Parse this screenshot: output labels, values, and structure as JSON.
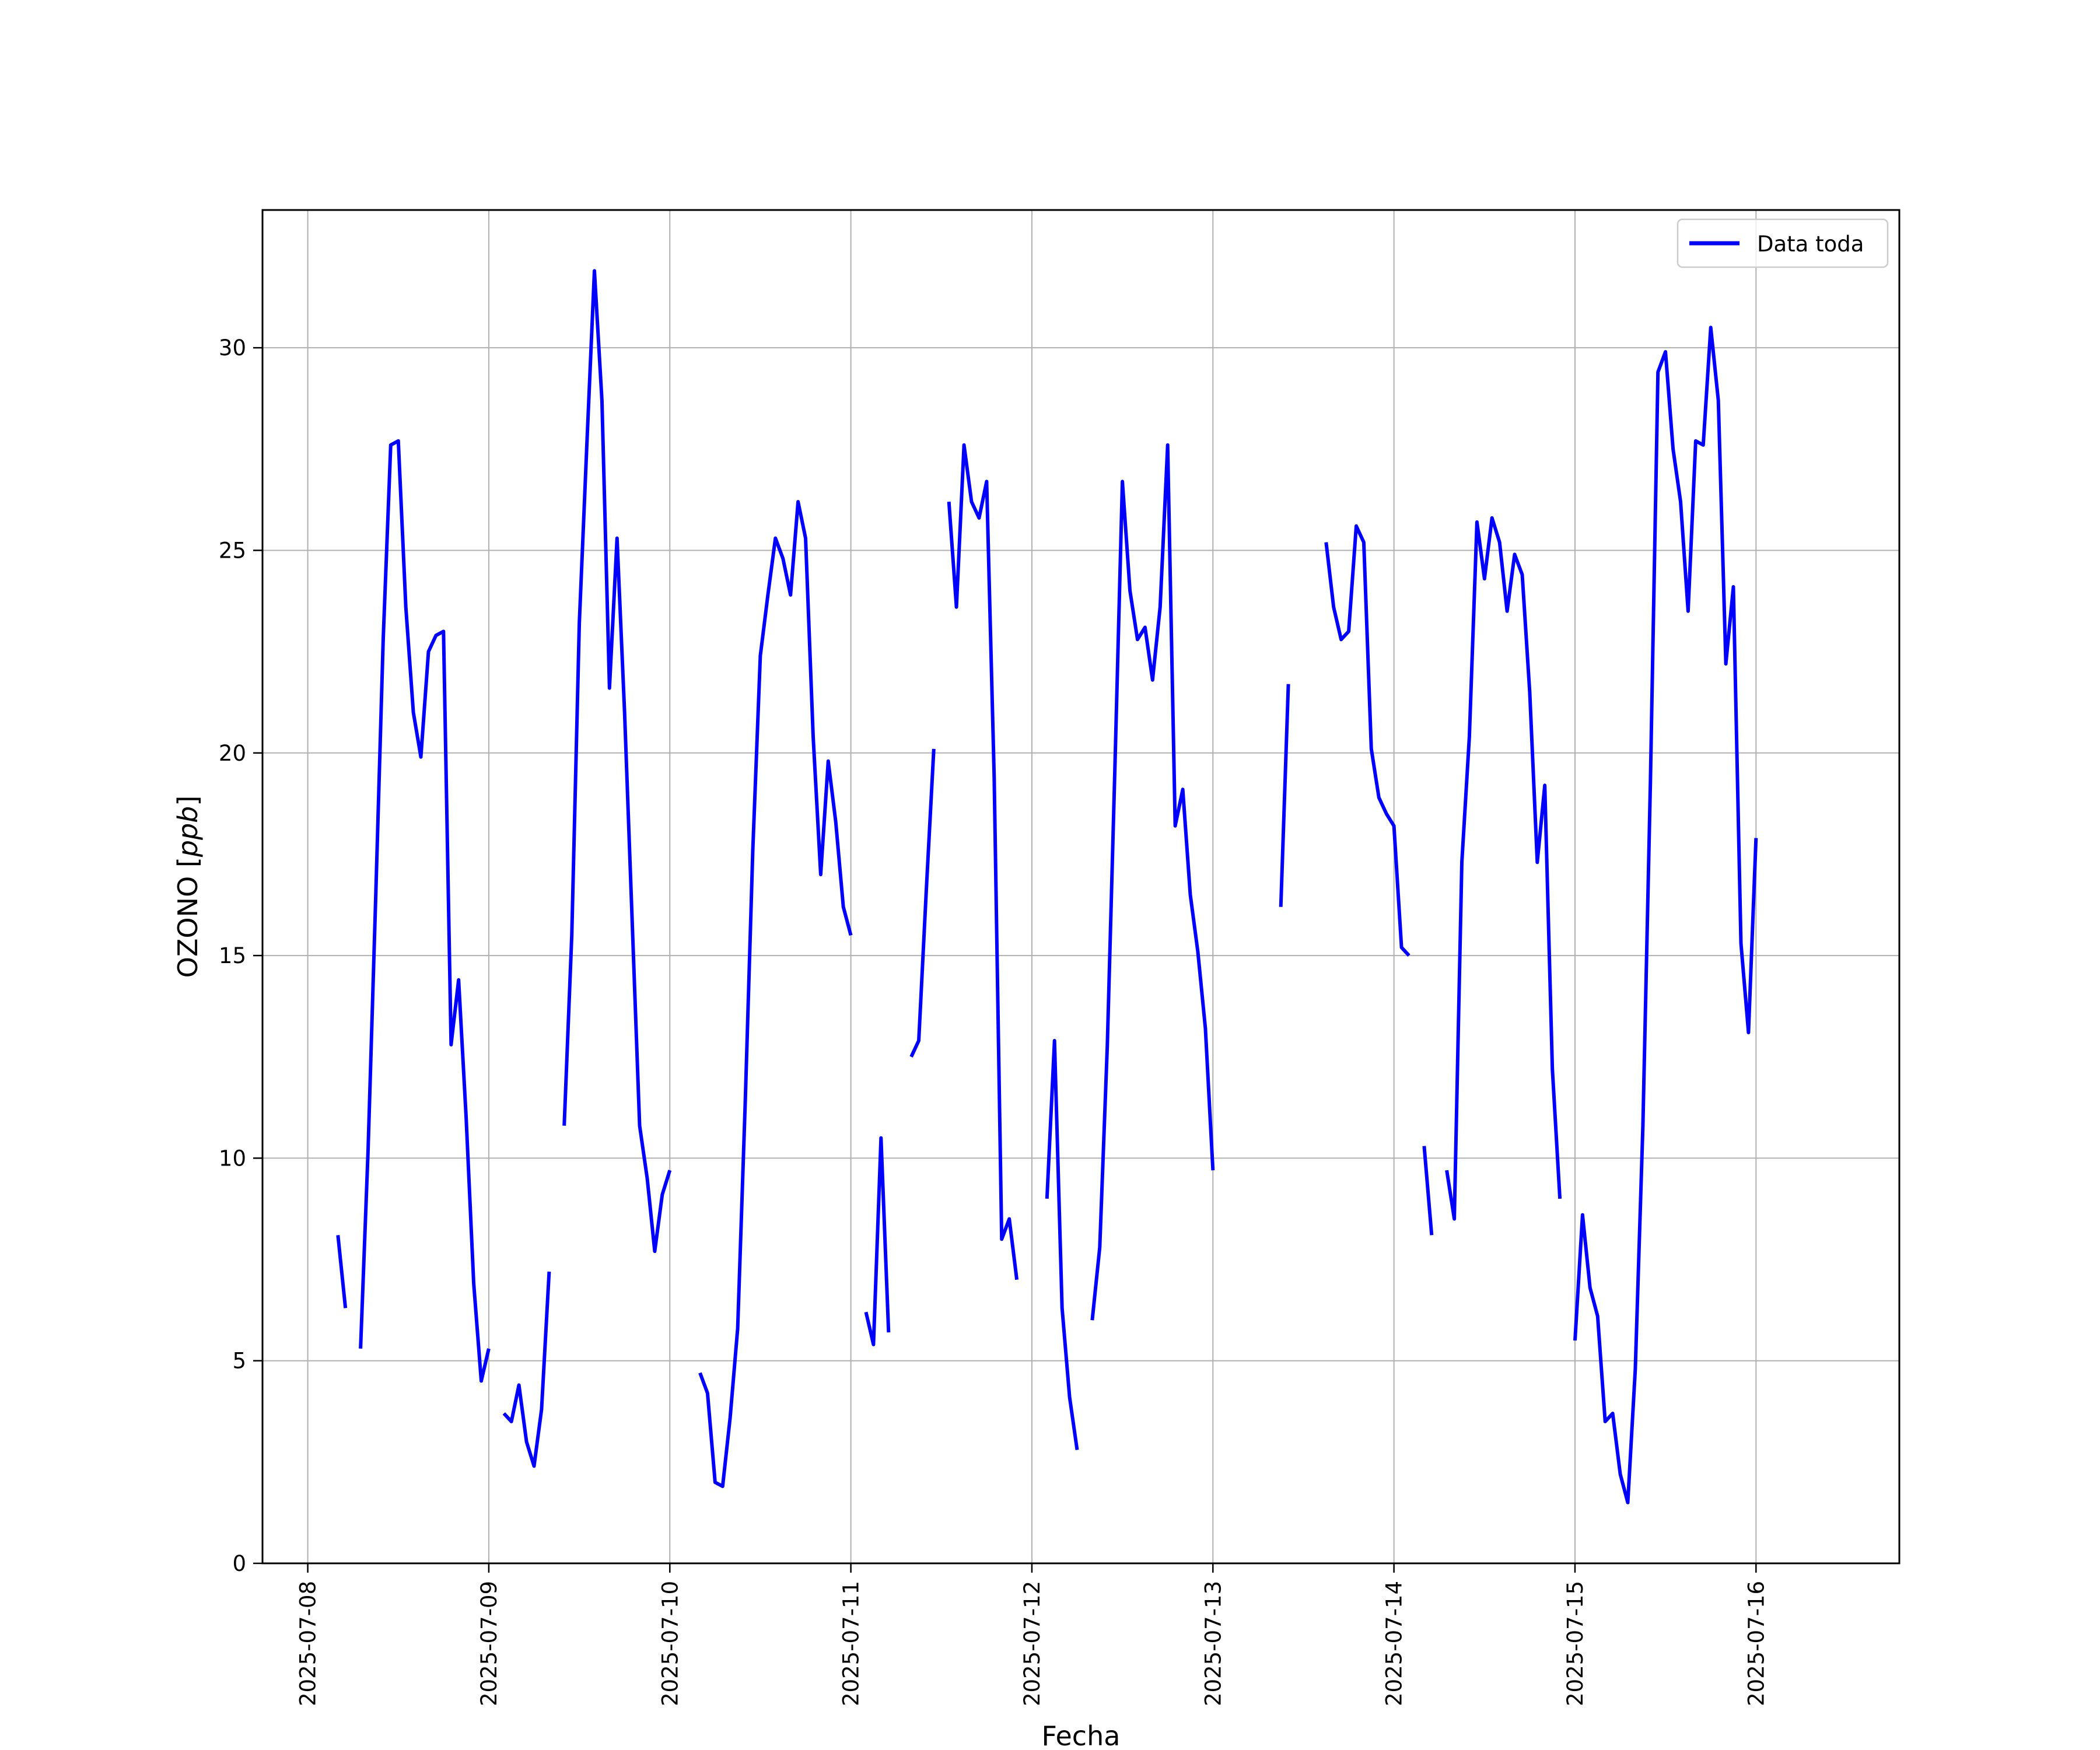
{
  "chart_data": {
    "type": "line",
    "xlabel": "Fecha",
    "ylabel": "OZONO [ppb]",
    "ylabel_italic_part": "ppb",
    "ylim": [
      0,
      33.4
    ],
    "xlim": [
      "2025-07-07 18:00",
      "2025-07-16 19:00"
    ],
    "x_ticks": [
      "2025-07-08",
      "2025-07-09",
      "2025-07-10",
      "2025-07-11",
      "2025-07-12",
      "2025-07-13",
      "2025-07-14",
      "2025-07-15",
      "2025-07-16"
    ],
    "y_ticks": [
      0,
      5,
      10,
      15,
      20,
      25,
      30
    ],
    "grid": true,
    "legend_position": "top-right",
    "series": [
      {
        "name": "Data toda",
        "color": "#0000ff",
        "segments": [
          [
            [
              "2025-07-08 04:00",
              8.1
            ],
            [
              "2025-07-08 05:00",
              6.3
            ]
          ],
          [
            [
              "2025-07-08 07:00",
              5.3
            ],
            [
              "2025-07-08 08:00",
              10.2
            ],
            [
              "2025-07-08 09:00",
              16.4
            ],
            [
              "2025-07-08 10:00",
              22.8
            ],
            [
              "2025-07-08 11:00",
              27.6
            ],
            [
              "2025-07-08 12:00",
              27.7
            ],
            [
              "2025-07-08 13:00",
              23.6
            ],
            [
              "2025-07-08 14:00",
              21.0
            ],
            [
              "2025-07-08 15:00",
              19.9
            ],
            [
              "2025-07-08 16:00",
              22.5
            ],
            [
              "2025-07-08 17:00",
              22.9
            ],
            [
              "2025-07-08 18:00",
              23.0
            ],
            [
              "2025-07-08 19:00",
              12.8
            ],
            [
              "2025-07-08 20:00",
              14.4
            ],
            [
              "2025-07-08 21:00",
              11.0
            ],
            [
              "2025-07-08 22:00",
              6.9
            ],
            [
              "2025-07-08 23:00",
              4.5
            ],
            [
              "2025-07-09 00:00",
              5.3
            ]
          ],
          [
            [
              "2025-07-09 02:00",
              3.7
            ],
            [
              "2025-07-09 03:00",
              3.5
            ],
            [
              "2025-07-09 04:00",
              4.4
            ],
            [
              "2025-07-09 05:00",
              3.0
            ],
            [
              "2025-07-09 06:00",
              2.4
            ],
            [
              "2025-07-09 07:00",
              3.8
            ],
            [
              "2025-07-09 08:00",
              7.2
            ]
          ],
          [
            [
              "2025-07-09 10:00",
              10.8
            ],
            [
              "2025-07-09 11:00",
              15.5
            ],
            [
              "2025-07-09 12:00",
              23.2
            ],
            [
              "2025-07-09 13:00",
              27.6
            ],
            [
              "2025-07-09 14:00",
              31.9
            ],
            [
              "2025-07-09 15:00",
              28.7
            ],
            [
              "2025-07-09 16:00",
              21.6
            ],
            [
              "2025-07-09 17:00",
              25.3
            ],
            [
              "2025-07-09 18:00",
              21.0
            ],
            [
              "2025-07-09 19:00",
              15.9
            ],
            [
              "2025-07-09 20:00",
              10.8
            ],
            [
              "2025-07-09 21:00",
              9.5
            ],
            [
              "2025-07-09 22:00",
              7.7
            ],
            [
              "2025-07-09 23:00",
              9.1
            ],
            [
              "2025-07-10 00:00",
              9.7
            ]
          ],
          [
            [
              "2025-07-10 04:00",
              4.7
            ],
            [
              "2025-07-10 05:00",
              4.2
            ],
            [
              "2025-07-10 06:00",
              2.0
            ],
            [
              "2025-07-10 07:00",
              1.9
            ],
            [
              "2025-07-10 08:00",
              3.6
            ],
            [
              "2025-07-10 09:00",
              5.8
            ],
            [
              "2025-07-10 10:00",
              11.4
            ],
            [
              "2025-07-10 11:00",
              17.6
            ],
            [
              "2025-07-10 12:00",
              22.4
            ],
            [
              "2025-07-10 13:00",
              23.9
            ],
            [
              "2025-07-10 14:00",
              25.3
            ],
            [
              "2025-07-10 15:00",
              24.8
            ],
            [
              "2025-07-10 16:00",
              23.9
            ],
            [
              "2025-07-10 17:00",
              26.2
            ],
            [
              "2025-07-10 18:00",
              25.3
            ],
            [
              "2025-07-10 19:00",
              20.4
            ],
            [
              "2025-07-10 20:00",
              17.0
            ],
            [
              "2025-07-10 21:00",
              19.8
            ],
            [
              "2025-07-10 22:00",
              18.3
            ],
            [
              "2025-07-10 23:00",
              16.2
            ],
            [
              "2025-07-11 00:00",
              15.5
            ]
          ],
          [
            [
              "2025-07-11 02:00",
              6.2
            ],
            [
              "2025-07-11 03:00",
              5.4
            ],
            [
              "2025-07-11 04:00",
              10.5
            ],
            [
              "2025-07-11 05:00",
              5.7
            ]
          ],
          [
            [
              "2025-07-11 08:00",
              12.5
            ],
            [
              "2025-07-11 09:00",
              12.9
            ],
            [
              "2025-07-11 10:00",
              16.6
            ],
            [
              "2025-07-11 11:00",
              20.1
            ]
          ],
          [
            [
              "2025-07-11 13:00",
              26.2
            ],
            [
              "2025-07-11 14:00",
              23.6
            ],
            [
              "2025-07-11 15:00",
              27.6
            ],
            [
              "2025-07-11 16:00",
              26.2
            ],
            [
              "2025-07-11 17:00",
              25.8
            ],
            [
              "2025-07-11 18:00",
              26.7
            ],
            [
              "2025-07-11 19:00",
              19.4
            ],
            [
              "2025-07-11 20:00",
              8.0
            ],
            [
              "2025-07-11 21:00",
              8.5
            ],
            [
              "2025-07-11 22:00",
              7.0
            ]
          ],
          [
            [
              "2025-07-12 02:00",
              9.0
            ],
            [
              "2025-07-12 03:00",
              12.9
            ],
            [
              "2025-07-12 04:00",
              6.3
            ],
            [
              "2025-07-12 05:00",
              4.1
            ],
            [
              "2025-07-12 06:00",
              2.8
            ]
          ],
          [
            [
              "2025-07-12 08:00",
              6.0
            ],
            [
              "2025-07-12 09:00",
              7.8
            ],
            [
              "2025-07-12 10:00",
              12.8
            ],
            [
              "2025-07-12 11:00",
              19.6
            ],
            [
              "2025-07-12 12:00",
              26.7
            ],
            [
              "2025-07-12 13:00",
              24.0
            ],
            [
              "2025-07-12 14:00",
              22.8
            ],
            [
              "2025-07-12 15:00",
              23.1
            ],
            [
              "2025-07-12 16:00",
              21.8
            ],
            [
              "2025-07-12 17:00",
              23.6
            ],
            [
              "2025-07-12 18:00",
              27.6
            ],
            [
              "2025-07-12 19:00",
              18.2
            ],
            [
              "2025-07-12 20:00",
              19.1
            ],
            [
              "2025-07-12 21:00",
              16.5
            ],
            [
              "2025-07-12 22:00",
              15.1
            ],
            [
              "2025-07-12 23:00",
              13.2
            ],
            [
              "2025-07-13 00:00",
              9.7
            ]
          ],
          [
            [
              "2025-07-13 09:00",
              16.2
            ],
            [
              "2025-07-13 10:00",
              21.7
            ]
          ],
          [
            [
              "2025-07-13 15:00",
              25.2
            ],
            [
              "2025-07-13 16:00",
              23.6
            ],
            [
              "2025-07-13 17:00",
              22.8
            ],
            [
              "2025-07-13 18:00",
              23.0
            ],
            [
              "2025-07-13 19:00",
              25.6
            ],
            [
              "2025-07-13 20:00",
              25.2
            ],
            [
              "2025-07-13 21:00",
              20.1
            ],
            [
              "2025-07-13 22:00",
              18.9
            ],
            [
              "2025-07-13 23:00",
              18.5
            ],
            [
              "2025-07-14 00:00",
              18.2
            ],
            [
              "2025-07-14 01:00",
              15.2
            ],
            [
              "2025-07-14 02:00",
              15.0
            ]
          ],
          [
            [
              "2025-07-14 04:00",
              10.3
            ],
            [
              "2025-07-14 05:00",
              8.1
            ]
          ],
          [
            [
              "2025-07-14 07:00",
              9.7
            ],
            [
              "2025-07-14 08:00",
              8.5
            ],
            [
              "2025-07-14 09:00",
              17.3
            ],
            [
              "2025-07-14 10:00",
              20.4
            ],
            [
              "2025-07-14 11:00",
              25.7
            ],
            [
              "2025-07-14 12:00",
              24.3
            ],
            [
              "2025-07-14 13:00",
              25.8
            ],
            [
              "2025-07-14 14:00",
              25.2
            ],
            [
              "2025-07-14 15:00",
              23.5
            ],
            [
              "2025-07-14 16:00",
              24.9
            ],
            [
              "2025-07-14 17:00",
              24.4
            ],
            [
              "2025-07-14 18:00",
              21.5
            ],
            [
              "2025-07-14 19:00",
              17.3
            ],
            [
              "2025-07-14 20:00",
              19.2
            ],
            [
              "2025-07-14 21:00",
              12.2
            ],
            [
              "2025-07-14 22:00",
              9.0
            ]
          ],
          [
            [
              "2025-07-15 00:00",
              5.5
            ],
            [
              "2025-07-15 01:00",
              8.6
            ],
            [
              "2025-07-15 02:00",
              6.8
            ],
            [
              "2025-07-15 03:00",
              6.1
            ],
            [
              "2025-07-15 04:00",
              3.5
            ],
            [
              "2025-07-15 05:00",
              3.7
            ],
            [
              "2025-07-15 06:00",
              2.2
            ],
            [
              "2025-07-15 07:00",
              1.5
            ],
            [
              "2025-07-15 08:00",
              4.8
            ],
            [
              "2025-07-15 09:00",
              10.8
            ],
            [
              "2025-07-15 10:00",
              19.3
            ],
            [
              "2025-07-15 11:00",
              29.4
            ],
            [
              "2025-07-15 12:00",
              29.9
            ],
            [
              "2025-07-15 13:00",
              27.5
            ],
            [
              "2025-07-15 14:00",
              26.2
            ],
            [
              "2025-07-15 15:00",
              23.5
            ],
            [
              "2025-07-15 16:00",
              27.7
            ],
            [
              "2025-07-15 17:00",
              27.6
            ],
            [
              "2025-07-15 18:00",
              30.5
            ],
            [
              "2025-07-15 19:00",
              28.7
            ],
            [
              "2025-07-15 20:00",
              22.2
            ],
            [
              "2025-07-15 21:00",
              24.1
            ],
            [
              "2025-07-15 22:00",
              15.3
            ],
            [
              "2025-07-15 23:00",
              13.1
            ],
            [
              "2025-07-16 00:00",
              17.9
            ]
          ]
        ]
      }
    ]
  }
}
